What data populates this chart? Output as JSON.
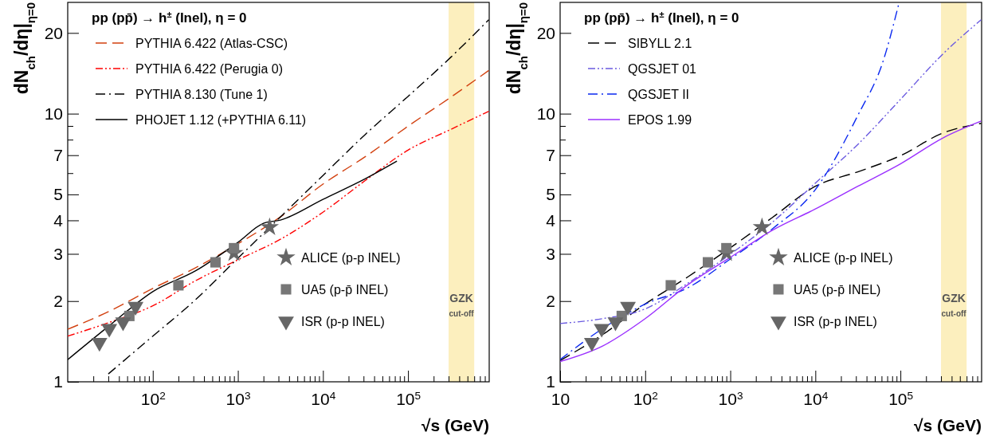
{
  "chart_data": [
    {
      "type": "line",
      "legend_title": "pp (pp̄) → h$^{±}$ (Inel), η = 0",
      "xlabel": "√s (GeV)",
      "ylabel": "dN$_{ch}$/dη|$_{η=0}$",
      "log": "xy",
      "legend": "top left",
      "xlim": [
        10,
        900000
      ],
      "ylim": [
        1,
        26
      ],
      "xticks": [
        {
          "value": 20,
          "label": null
        },
        {
          "value": 30,
          "label": null
        },
        {
          "value": 40,
          "label": null
        },
        {
          "value": 50,
          "label": null
        },
        {
          "value": 60,
          "label": null
        },
        {
          "value": 70,
          "label": null
        },
        {
          "value": 80,
          "label": null
        },
        {
          "value": 90,
          "label": null
        },
        {
          "value": 100,
          "label": "10$^{2}$"
        },
        {
          "value": 200,
          "label": null
        },
        {
          "value": 300,
          "label": null
        },
        {
          "value": 400,
          "label": null
        },
        {
          "value": 500,
          "label": null
        },
        {
          "value": 600,
          "label": null
        },
        {
          "value": 700,
          "label": null
        },
        {
          "value": 800,
          "label": null
        },
        {
          "value": 900,
          "label": null
        },
        {
          "value": 1000,
          "label": "10$^{3}$"
        },
        {
          "value": 2000,
          "label": null
        },
        {
          "value": 3000,
          "label": null
        },
        {
          "value": 4000,
          "label": null
        },
        {
          "value": 5000,
          "label": null
        },
        {
          "value": 6000,
          "label": null
        },
        {
          "value": 7000,
          "label": null
        },
        {
          "value": 8000,
          "label": null
        },
        {
          "value": 9000,
          "label": null
        },
        {
          "value": 10000,
          "label": "10$^{4}$"
        },
        {
          "value": 20000,
          "label": null
        },
        {
          "value": 30000,
          "label": null
        },
        {
          "value": 40000,
          "label": null
        },
        {
          "value": 50000,
          "label": null
        },
        {
          "value": 60000,
          "label": null
        },
        {
          "value": 70000,
          "label": null
        },
        {
          "value": 80000,
          "label": null
        },
        {
          "value": 90000,
          "label": null
        },
        {
          "value": 100000,
          "label": "10$^{5}$"
        },
        {
          "value": 200000,
          "label": null
        },
        {
          "value": 300000,
          "label": null
        },
        {
          "value": 400000,
          "label": null
        },
        {
          "value": 500000,
          "label": null
        },
        {
          "value": 600000,
          "label": null
        },
        {
          "value": 700000,
          "label": null
        },
        {
          "value": 800000,
          "label": null
        }
      ],
      "yticks": [
        1,
        2,
        3,
        4,
        5,
        {
          "value": 6,
          "label": null
        },
        7,
        {
          "value": 8,
          "label": null
        },
        {
          "value": 9,
          "label": null
        },
        10,
        20
      ],
      "bands": [
        {
          "axis": "x",
          "from": 300000,
          "to": 600000,
          "label": "GZK cut-off",
          "color": "#fcefbe"
        }
      ],
      "series": [
        {
          "name": "PYTHIA 6.422 (Atlas-CSC)",
          "type": "line",
          "line_style": "dashed",
          "color": "#d2400f",
          "x": [
            10,
            31.6,
            100,
            316,
            1000,
            3160,
            10000,
            31600,
            100000,
            316000,
            890000
          ],
          "values": [
            1.57,
            1.84,
            2.23,
            2.66,
            3.27,
            4.12,
            5.46,
            6.92,
            8.98,
            11.5,
            14.5
          ]
        },
        {
          "name": "PYTHIA 6.422 (Perugia 0)",
          "type": "line",
          "line_style": "dashed",
          "color": "#ff0000",
          "x": [
            10,
            31.6,
            100,
            316,
            1000,
            3160,
            10000,
            31600,
            100000,
            316000,
            890000
          ],
          "values": [
            1.48,
            1.67,
            1.92,
            2.38,
            2.85,
            3.4,
            4.29,
            5.64,
            7.31,
            8.73,
            10.2
          ]
        },
        {
          "name": "PYTHIA 8.130 (Tune 1)",
          "type": "line",
          "line_style": "dashed",
          "color": "#000000",
          "x": [
            30,
            100,
            316,
            1000,
            3160,
            10000,
            31600,
            100000,
            316000,
            890000
          ],
          "values": [
            1.07,
            1.48,
            2.02,
            2.89,
            4.12,
            5.88,
            8.38,
            11.6,
            16.2,
            22.4
          ]
        },
        {
          "name": "PHOJET 1.12 (+PYTHIA 6.11)",
          "type": "line",
          "line_style": "solid",
          "color": "#000000",
          "x": [
            10,
            31.6,
            100,
            316,
            1000,
            2000,
            3160,
            10000,
            31600,
            74000
          ],
          "values": [
            1.21,
            1.63,
            2.17,
            2.59,
            3.31,
            3.9,
            4.01,
            4.79,
            5.72,
            6.65
          ]
        },
        {
          "name": "ALICE (p-p INEL)",
          "type": "scatter",
          "marker": "star",
          "color": "#666666",
          "x": [
            900,
            2360
          ],
          "values": [
            3.02,
            3.77
          ]
        },
        {
          "name": "UA5 (p-p̄ INEL)",
          "type": "scatter",
          "marker": "square",
          "color": "#777777",
          "x": [
            53,
            200,
            546,
            900
          ],
          "values": [
            1.76,
            2.29,
            2.79,
            3.15
          ]
        },
        {
          "name": "ISR (p-p INEL)",
          "type": "scatter",
          "marker": "triangle",
          "color": "#666666",
          "x": [
            23.6,
            30.8,
            44.7,
            62.7
          ],
          "values": [
            1.4,
            1.58,
            1.67,
            1.91
          ]
        }
      ]
    },
    {
      "type": "line",
      "legend_title": "pp (pp̄) → h$^{±}$ (Inel),  η = 0",
      "xlabel": "√s (GeV)",
      "ylabel": "dN$_{ch}$/dη|$_{η=0}$",
      "log": "xy",
      "legend": "top left",
      "xlim": [
        10,
        900000
      ],
      "ylim": [
        1,
        26
      ],
      "xticks": [
        10,
        {
          "value": 20,
          "label": null
        },
        {
          "value": 30,
          "label": null
        },
        {
          "value": 40,
          "label": null
        },
        {
          "value": 50,
          "label": null
        },
        {
          "value": 60,
          "label": null
        },
        {
          "value": 70,
          "label": null
        },
        {
          "value": 80,
          "label": null
        },
        {
          "value": 90,
          "label": null
        },
        {
          "value": 100,
          "label": "10$^{2}$"
        },
        {
          "value": 200,
          "label": null
        },
        {
          "value": 300,
          "label": null
        },
        {
          "value": 400,
          "label": null
        },
        {
          "value": 500,
          "label": null
        },
        {
          "value": 600,
          "label": null
        },
        {
          "value": 700,
          "label": null
        },
        {
          "value": 800,
          "label": null
        },
        {
          "value": 900,
          "label": null
        },
        {
          "value": 1000,
          "label": "10$^{3}$"
        },
        {
          "value": 2000,
          "label": null
        },
        {
          "value": 3000,
          "label": null
        },
        {
          "value": 4000,
          "label": null
        },
        {
          "value": 5000,
          "label": null
        },
        {
          "value": 6000,
          "label": null
        },
        {
          "value": 7000,
          "label": null
        },
        {
          "value": 8000,
          "label": null
        },
        {
          "value": 9000,
          "label": null
        },
        {
          "value": 10000,
          "label": "10$^{4}$"
        },
        {
          "value": 20000,
          "label": null
        },
        {
          "value": 30000,
          "label": null
        },
        {
          "value": 40000,
          "label": null
        },
        {
          "value": 50000,
          "label": null
        },
        {
          "value": 60000,
          "label": null
        },
        {
          "value": 70000,
          "label": null
        },
        {
          "value": 80000,
          "label": null
        },
        {
          "value": 90000,
          "label": null
        },
        {
          "value": 100000,
          "label": "10$^{5}$"
        },
        {
          "value": 200000,
          "label": null
        },
        {
          "value": 300000,
          "label": null
        },
        {
          "value": 400000,
          "label": null
        },
        {
          "value": 500000,
          "label": null
        },
        {
          "value": 600000,
          "label": null
        },
        {
          "value": 700000,
          "label": null
        },
        {
          "value": 800000,
          "label": null
        }
      ],
      "yticks": [
        1,
        2,
        3,
        4,
        5,
        {
          "value": 6,
          "label": null
        },
        7,
        {
          "value": 8,
          "label": null
        },
        {
          "value": 9,
          "label": null
        },
        10,
        20
      ],
      "bands": [
        {
          "axis": "x",
          "from": 300000,
          "to": 600000,
          "label": "GZK cut-off",
          "color": "#fcefbe"
        }
      ],
      "series": [
        {
          "name": "SIBYLL 2.1",
          "type": "line",
          "line_style": "dashed",
          "color": "#000000",
          "x": [
            10,
            31.6,
            100,
            316,
            1000,
            3160,
            10000,
            31600,
            100000,
            316000,
            890000
          ],
          "values": [
            1.2,
            1.5,
            1.95,
            2.46,
            3.16,
            4.11,
            5.36,
            6.07,
            6.97,
            8.47,
            9.2
          ]
        },
        {
          "name": "QGSJET 01",
          "type": "line",
          "line_style": "dashed",
          "color": "#6a5ae0",
          "x": [
            10,
            31.6,
            100,
            316,
            1000,
            3160,
            10000,
            31600,
            100000,
            316000,
            890000
          ],
          "values": [
            1.65,
            1.72,
            1.87,
            2.33,
            2.99,
            3.95,
            5.51,
            7.68,
            11.3,
            16.7,
            22.4
          ]
        },
        {
          "name": "QGSJET II",
          "type": "line",
          "line_style": "dashed",
          "color": "#0a28f0",
          "x": [
            10,
            31.6,
            100,
            316,
            1000,
            3160,
            10000,
            31600,
            63000,
            96600
          ],
          "values": [
            1.21,
            1.58,
            1.95,
            2.24,
            2.87,
            3.73,
            5.21,
            9.86,
            15.8,
            26
          ]
        },
        {
          "name": "EPOS 1.99",
          "type": "line",
          "line_style": "solid",
          "color": "#9b30ff",
          "x": [
            10,
            31.6,
            100,
            316,
            1000,
            3160,
            10000,
            31600,
            100000,
            316000,
            890000
          ],
          "values": [
            1.19,
            1.36,
            1.72,
            2.3,
            2.91,
            3.68,
            4.41,
            5.36,
            6.5,
            8.12,
            9.38
          ]
        },
        {
          "name": "ALICE (p-p INEL)",
          "type": "scatter",
          "marker": "star",
          "color": "#666666",
          "x": [
            900,
            2360
          ],
          "values": [
            3.02,
            3.77
          ]
        },
        {
          "name": "UA5 (p-p̄ INEL)",
          "type": "scatter",
          "marker": "square",
          "color": "#777777",
          "x": [
            53,
            200,
            546,
            900
          ],
          "values": [
            1.76,
            2.29,
            2.79,
            3.15
          ]
        },
        {
          "name": "ISR (p-p INEL)",
          "type": "scatter",
          "marker": "triangle",
          "color": "#666666",
          "x": [
            23.6,
            30.8,
            44.7,
            62.7
          ],
          "values": [
            1.4,
            1.58,
            1.67,
            1.91
          ]
        }
      ]
    }
  ]
}
